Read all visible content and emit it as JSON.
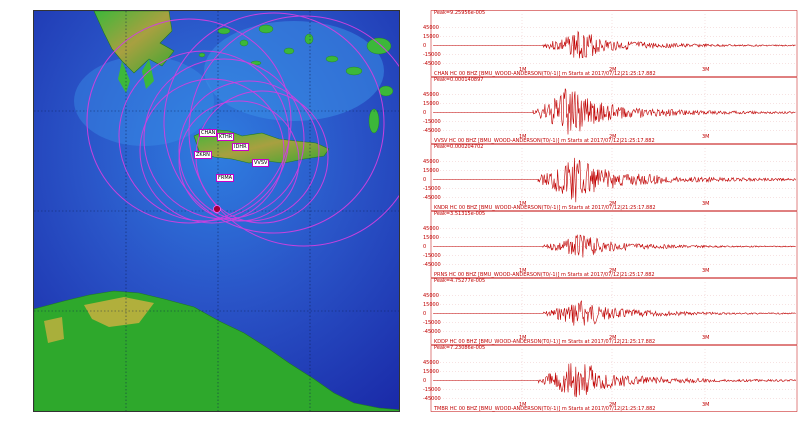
{
  "colors": {
    "sea_deep": "#1a2aa8",
    "sea_mid": "#2d4cc8",
    "sea_shallow": "#2f7ee0",
    "land_green": "#2ea82c",
    "land_yellow": "#c8b040",
    "circle_magenta": "#d040e0",
    "trace_red": "#c00000",
    "epicenter": "#a0003a"
  },
  "map": {
    "stations": [
      {
        "code": "CHAN"
      },
      {
        "code": "KTHR"
      },
      {
        "code": "IDHR"
      },
      {
        "code": "ZKRN"
      },
      {
        "code": "VVSV"
      },
      {
        "code": "FRMA"
      }
    ]
  },
  "seismogram": {
    "time_ticks": [
      "1M",
      "2M",
      "3M"
    ],
    "amp_ticks": [
      "45000",
      "15000",
      "0",
      "-15000",
      "-45000"
    ],
    "traces": [
      {
        "peak": "Peak=9.25956e-005",
        "station": "CHAN HC 00 BHZ  [BMU_WOOD-ANDERSON(T0/-1)] m  Starts at 2017/07/12|21:25:17.882",
        "amplitude": 0.55
      },
      {
        "peak": "Peak=0.000140897",
        "station": "VVSV HC 00 BHZ  [BMU_WOOD-ANDERSON(T0/-1)] m  Starts at 2017/07/12|21:25:17.882",
        "amplitude": 0.95
      },
      {
        "peak": "Peak=0.000204702",
        "station": "KNDR HC 00 BHZ  [BMU_WOOD-ANDERSON(T0/-1)] m  Starts at 2017/07/12|21:25:17.882",
        "amplitude": 1.0
      },
      {
        "peak": "Peak=3.51315e-005",
        "station": "PRNS HC 00 BHZ  [BMU_WOOD-ANDERSON(T0/-1)] m  Starts at 2017/07/12|21:25:17.882",
        "amplitude": 0.45
      },
      {
        "peak": "Peak=4.75277e-005",
        "station": "KDDP HC 00 BHZ  [BMU_WOOD-ANDERSON(T0/-1)] m  Starts at 2017/07/12|21:25:17.882",
        "amplitude": 0.55
      },
      {
        "peak": "Peak=7.23086e-005",
        "station": "TMBR HC 00 BHZ  [BMU_WOOD-ANDERSON(T0/-1)] m  Starts at 2017/07/12|21:25:17.882",
        "amplitude": 0.8
      }
    ]
  }
}
